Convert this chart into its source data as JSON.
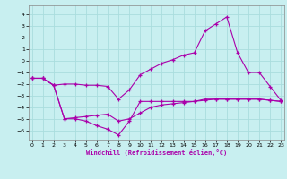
{
  "xlabel": "Windchill (Refroidissement éolien,°C)",
  "xlim": [
    -0.3,
    23.3
  ],
  "ylim": [
    -6.8,
    4.8
  ],
  "yticks": [
    4,
    3,
    2,
    1,
    0,
    -1,
    -2,
    -3,
    -4,
    -5,
    -6
  ],
  "xticks": [
    0,
    1,
    2,
    3,
    4,
    5,
    6,
    7,
    8,
    9,
    10,
    11,
    12,
    13,
    14,
    15,
    16,
    17,
    18,
    19,
    20,
    21,
    22,
    23
  ],
  "background_color": "#c8eff0",
  "line_color": "#aa00aa",
  "grid_color": "#aadddd",
  "line1_x": [
    0,
    1,
    2,
    3,
    4,
    5,
    6,
    7,
    8,
    9,
    10,
    11,
    12,
    13,
    14,
    15,
    16,
    17,
    18,
    19,
    20,
    21,
    22,
    23
  ],
  "line1_y": [
    -1.5,
    -1.5,
    -2.1,
    -2.0,
    -2.0,
    -2.1,
    -2.1,
    -2.2,
    -3.3,
    -2.5,
    -1.2,
    -0.7,
    -0.2,
    0.1,
    0.5,
    0.7,
    2.6,
    3.2,
    3.8,
    0.7,
    -1.0,
    -1.0,
    -2.2,
    -3.4
  ],
  "line2_x": [
    0,
    1,
    2,
    3,
    4,
    5,
    6,
    7,
    8,
    9,
    10,
    11,
    12,
    13,
    14,
    15,
    16,
    17,
    18,
    19,
    20,
    21,
    22,
    23
  ],
  "line2_y": [
    -1.5,
    -1.5,
    -2.1,
    -5.0,
    -5.0,
    -5.2,
    -5.6,
    -5.9,
    -6.4,
    -5.2,
    -3.5,
    -3.5,
    -3.5,
    -3.5,
    -3.5,
    -3.5,
    -3.3,
    -3.3,
    -3.3,
    -3.3,
    -3.3,
    -3.3,
    -3.4,
    -3.5
  ],
  "line3_x": [
    0,
    1,
    2,
    3,
    4,
    5,
    6,
    7,
    8,
    9,
    10,
    11,
    12,
    13,
    14,
    15,
    16,
    17,
    18,
    19,
    20,
    21,
    22,
    23
  ],
  "line3_y": [
    -1.5,
    -1.5,
    -2.1,
    -5.0,
    -4.9,
    -4.8,
    -4.7,
    -4.6,
    -5.2,
    -5.0,
    -4.5,
    -4.0,
    -3.8,
    -3.7,
    -3.6,
    -3.5,
    -3.4,
    -3.3,
    -3.3,
    -3.3,
    -3.3,
    -3.3,
    -3.4,
    -3.5
  ]
}
